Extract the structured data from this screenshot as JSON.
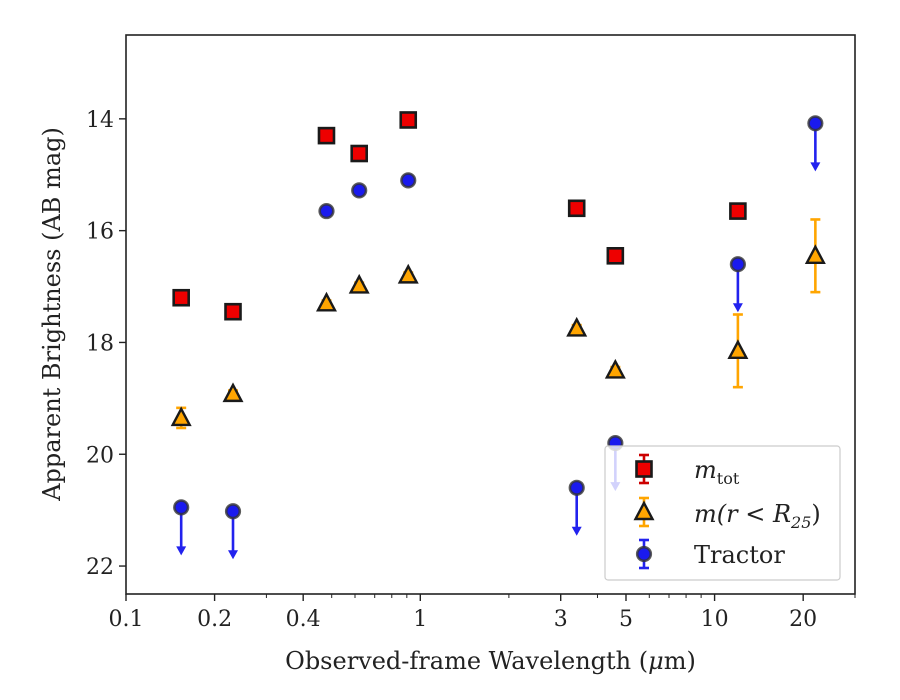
{
  "chart_data": {
    "type": "scatter",
    "xlabel_pre": "Observed-frame Wavelength (",
    "xlabel_mu": "μ",
    "xlabel_post": "m)",
    "ylabel": "Apparent Brightness (AB mag)",
    "xscale": "log",
    "xlim": [
      0.1,
      30
    ],
    "ylim": [
      22.5,
      12.5
    ],
    "y_inverted": true,
    "x_ticks": [
      0.1,
      0.2,
      0.4,
      1,
      3,
      5,
      10,
      20
    ],
    "x_tick_labels": [
      "0.1",
      "0.2",
      "0.4",
      "1",
      "3",
      "5",
      "10",
      "20"
    ],
    "y_ticks": [
      14,
      16,
      18,
      20,
      22
    ],
    "y_tick_labels": [
      "14",
      "16",
      "18",
      "20",
      "22"
    ],
    "legend_position": "lower-right",
    "series": [
      {
        "key": "mtot",
        "legend_main": "m",
        "legend_sub": "tot",
        "marker": "square",
        "fill": "#ee0000",
        "errcolor": "#cc0000",
        "points": [
          {
            "x": 0.154,
            "y": 17.2,
            "err": 0.06
          },
          {
            "x": 0.231,
            "y": 17.45,
            "err": 0.06
          },
          {
            "x": 0.48,
            "y": 14.3,
            "err": 0.06
          },
          {
            "x": 0.62,
            "y": 14.62,
            "err": 0.06
          },
          {
            "x": 0.91,
            "y": 14.02,
            "err": 0.06
          },
          {
            "x": 3.4,
            "y": 15.6,
            "err": 0.06
          },
          {
            "x": 4.6,
            "y": 16.45,
            "err": 0.06
          },
          {
            "x": 12.0,
            "y": 15.65,
            "err": 0.06
          }
        ]
      },
      {
        "key": "mr25",
        "legend_main": "m(r < R",
        "legend_sub": "25",
        "legend_tail": ")",
        "marker": "triangle",
        "fill": "#ffa500",
        "errcolor": "#ffa500",
        "points": [
          {
            "x": 0.154,
            "y": 19.35,
            "err": 0.18
          },
          {
            "x": 0.231,
            "y": 18.92,
            "err": 0.06
          },
          {
            "x": 0.48,
            "y": 17.3,
            "err": 0.05
          },
          {
            "x": 0.62,
            "y": 16.98,
            "err": 0.05
          },
          {
            "x": 0.91,
            "y": 16.8,
            "err": 0.05
          },
          {
            "x": 3.4,
            "y": 17.75,
            "err": 0.06
          },
          {
            "x": 4.6,
            "y": 18.5,
            "err": 0.06
          },
          {
            "x": 12.0,
            "y": 18.15,
            "err": 0.65
          },
          {
            "x": 22.0,
            "y": 16.45,
            "err": 0.65
          }
        ]
      },
      {
        "key": "tractor",
        "legend_main": "Tractor",
        "marker": "circle",
        "fill": "#1a1aee",
        "errcolor": "#2222ee",
        "points": [
          {
            "x": 0.154,
            "y": 20.95,
            "upper_limit": true
          },
          {
            "x": 0.231,
            "y": 21.02,
            "upper_limit": true
          },
          {
            "x": 0.48,
            "y": 15.65,
            "err": 0.05
          },
          {
            "x": 0.62,
            "y": 15.28,
            "err": 0.05
          },
          {
            "x": 0.91,
            "y": 15.1,
            "err": 0.05
          },
          {
            "x": 3.4,
            "y": 20.6,
            "upper_limit": true
          },
          {
            "x": 4.6,
            "y": 19.8,
            "upper_limit": true
          },
          {
            "x": 12.0,
            "y": 16.6,
            "upper_limit": true
          },
          {
            "x": 22.0,
            "y": 14.08,
            "upper_limit": true
          }
        ]
      }
    ]
  }
}
